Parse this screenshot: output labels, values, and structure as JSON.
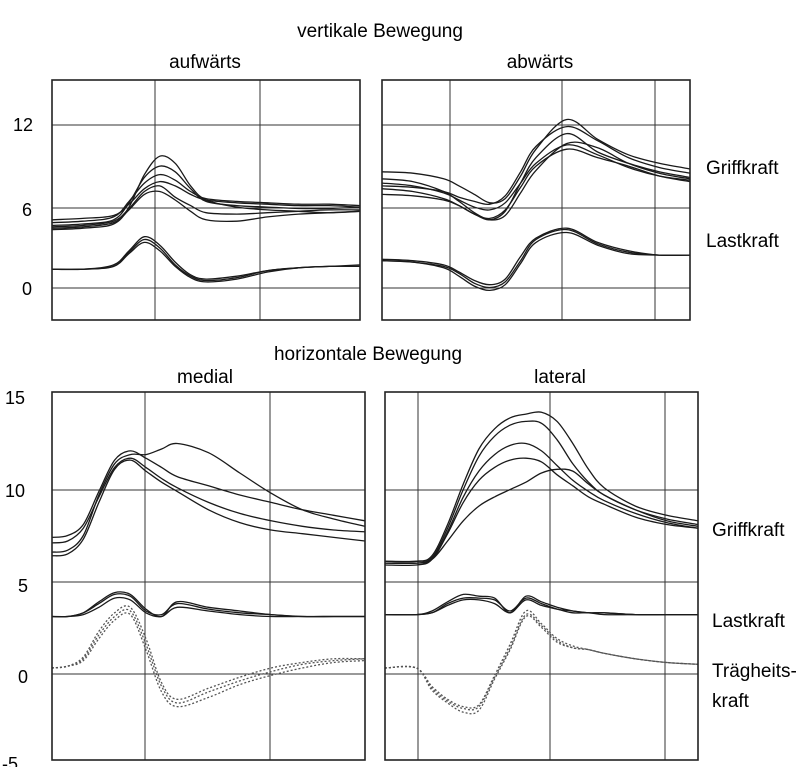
{
  "figure": {
    "title_vertical": "vertikale Bewegung",
    "title_horizontal": "horizontale Bewegung",
    "labels": {
      "griffkraft_top": "Griffkraft",
      "lastkraft_top": "Lastkraft",
      "griffkraft_bottom": "Griffkraft",
      "lastkraft_bottom": "Lastkraft",
      "traegheit_line1": "Trägheits-",
      "traegheit_line2": "kraft"
    }
  },
  "chart_data": [
    {
      "type": "line",
      "title": "aufwärts",
      "xlabel": "",
      "ylabel": "",
      "ylim": [
        -1.5,
        15.5
      ],
      "yticks": [
        "0",
        "6",
        "12"
      ],
      "grid": true,
      "x": [
        0,
        0.1,
        0.2,
        0.25,
        0.3,
        0.35,
        0.4,
        0.45,
        0.5,
        0.6,
        0.7,
        0.8,
        0.9,
        1.0
      ],
      "series": [
        {
          "group": "Griffkraft",
          "values": [
            4.9,
            5.0,
            5.3,
            6.5,
            8.8,
            10.1,
            9.6,
            8.0,
            7.0,
            6.5,
            6.3,
            6.2,
            6.1,
            6.2
          ]
        },
        {
          "group": "Griffkraft",
          "values": [
            5.2,
            5.3,
            5.6,
            6.8,
            8.6,
            9.4,
            9.0,
            7.8,
            6.9,
            6.6,
            6.5,
            6.4,
            6.4,
            6.5
          ]
        },
        {
          "group": "Griffkraft",
          "values": [
            5.4,
            5.5,
            5.8,
            6.9,
            8.2,
            8.8,
            8.4,
            7.6,
            7.1,
            6.9,
            6.8,
            6.7,
            6.7,
            6.6
          ]
        },
        {
          "group": "Griffkraft",
          "values": [
            5.6,
            5.7,
            5.9,
            6.7,
            7.8,
            8.3,
            8.0,
            7.4,
            7.0,
            6.8,
            6.7,
            6.6,
            6.6,
            6.5
          ]
        },
        {
          "group": "Griffkraft",
          "values": [
            5.0,
            5.1,
            5.4,
            6.3,
            7.4,
            7.6,
            7.0,
            6.2,
            5.6,
            5.5,
            5.8,
            6.0,
            6.1,
            6.2
          ]
        },
        {
          "group": "Griffkraft",
          "values": [
            5.1,
            5.2,
            5.5,
            6.4,
            7.6,
            8.0,
            7.2,
            6.6,
            6.1,
            6.0,
            6.1,
            6.2,
            6.3,
            6.3
          ]
        },
        {
          "group": "Lastkraft",
          "values": [
            2.1,
            2.1,
            2.3,
            3.3,
            4.2,
            3.6,
            2.4,
            1.6,
            1.3,
            1.5,
            2.0,
            2.2,
            2.3,
            2.3
          ]
        },
        {
          "group": "Lastkraft",
          "values": [
            2.1,
            2.1,
            2.3,
            3.2,
            4.0,
            3.4,
            2.3,
            1.5,
            1.2,
            1.4,
            1.9,
            2.2,
            2.3,
            2.3
          ]
        },
        {
          "group": "Lastkraft",
          "values": [
            2.1,
            2.1,
            2.4,
            3.4,
            4.4,
            3.8,
            2.6,
            1.7,
            1.4,
            1.6,
            2.0,
            2.2,
            2.3,
            2.4
          ]
        }
      ]
    },
    {
      "type": "line",
      "title": "abwärts",
      "xlabel": "",
      "ylabel": "",
      "ylim": [
        -1.5,
        15.5
      ],
      "grid": true,
      "x": [
        0,
        0.1,
        0.2,
        0.25,
        0.3,
        0.35,
        0.4,
        0.45,
        0.5,
        0.6,
        0.7,
        0.8,
        0.9,
        1.0
      ],
      "series": [
        {
          "group": "Griffkraft",
          "values": [
            9.0,
            8.9,
            8.5,
            8.0,
            7.4,
            6.8,
            7.1,
            8.7,
            10.6,
            12.7,
            11.3,
            10.2,
            9.6,
            9.2
          ]
        },
        {
          "group": "Griffkraft",
          "values": [
            8.0,
            7.9,
            7.6,
            7.2,
            6.9,
            6.7,
            7.3,
            9.0,
            10.8,
            12.2,
            11.2,
            10.0,
            9.3,
            8.9
          ]
        },
        {
          "group": "Griffkraft",
          "values": [
            7.4,
            7.3,
            7.0,
            6.6,
            6.0,
            5.6,
            6.2,
            8.2,
            10.0,
            11.7,
            10.4,
            9.6,
            9.0,
            8.6
          ]
        },
        {
          "group": "Griffkraft",
          "values": [
            8.5,
            8.3,
            7.6,
            6.9,
            6.1,
            5.6,
            5.9,
            7.5,
            9.1,
            11.0,
            10.7,
            9.6,
            8.9,
            8.5
          ]
        },
        {
          "group": "Griffkraft",
          "values": [
            7.8,
            7.6,
            7.1,
            6.6,
            6.0,
            5.7,
            6.3,
            7.9,
            9.4,
            10.6,
            10.0,
            9.4,
            8.7,
            8.3
          ]
        },
        {
          "group": "Griffkraft",
          "values": [
            8.2,
            8.0,
            7.5,
            7.0,
            6.5,
            6.3,
            6.8,
            8.2,
            9.6,
            10.9,
            10.2,
            9.3,
            8.7,
            8.4
          ]
        },
        {
          "group": "Lastkraft",
          "values": [
            2.7,
            2.6,
            2.3,
            1.8,
            1.1,
            0.8,
            1.2,
            2.7,
            4.2,
            4.9,
            3.9,
            3.3,
            3.1,
            3.1
          ]
        },
        {
          "group": "Lastkraft",
          "values": [
            2.8,
            2.7,
            2.4,
            1.9,
            1.3,
            1.0,
            1.4,
            3.0,
            4.3,
            5.0,
            4.0,
            3.4,
            3.1,
            3.1
          ]
        },
        {
          "group": "Lastkraft",
          "values": [
            2.7,
            2.6,
            2.2,
            1.6,
            0.9,
            0.6,
            1.0,
            2.5,
            4.0,
            4.7,
            3.8,
            3.2,
            3.1,
            3.1
          ]
        }
      ]
    },
    {
      "type": "line",
      "title": "medial",
      "xlabel": "",
      "ylabel": "",
      "ylim": [
        -5,
        15
      ],
      "yticks": [
        "-5",
        "0",
        "5",
        "10",
        "15"
      ],
      "grid": true,
      "x": [
        0,
        0.05,
        0.1,
        0.15,
        0.2,
        0.25,
        0.3,
        0.35,
        0.4,
        0.5,
        0.6,
        0.7,
        0.8,
        0.9,
        1.0
      ],
      "series": [
        {
          "group": "Griffkraft",
          "values": [
            7.1,
            7.2,
            7.8,
            9.6,
            11.3,
            11.8,
            11.4,
            10.9,
            10.4,
            9.9,
            9.4,
            9.0,
            8.6,
            8.3,
            8.0
          ]
        },
        {
          "group": "Griffkraft",
          "values": [
            6.3,
            6.4,
            7.2,
            9.4,
            11.1,
            11.6,
            11.6,
            11.9,
            12.2,
            11.7,
            10.6,
            9.5,
            8.6,
            8.1,
            7.7
          ]
        },
        {
          "group": "Griffkraft",
          "values": [
            6.1,
            6.2,
            7.0,
            9.0,
            10.8,
            11.3,
            10.7,
            10.1,
            9.6,
            8.6,
            7.9,
            7.5,
            7.3,
            7.1,
            6.9
          ]
        },
        {
          "group": "Griffkraft",
          "values": [
            6.8,
            6.9,
            7.6,
            9.3,
            10.9,
            11.4,
            10.9,
            10.3,
            9.8,
            9.0,
            8.4,
            8.0,
            7.7,
            7.5,
            7.4
          ]
        },
        {
          "group": "Lastkraft",
          "values": [
            2.8,
            2.8,
            3.0,
            3.5,
            4.0,
            3.9,
            3.1,
            2.9,
            3.5,
            3.2,
            3.0,
            2.9,
            2.8,
            2.8,
            2.8
          ]
        },
        {
          "group": "Lastkraft",
          "values": [
            2.8,
            2.8,
            3.0,
            3.6,
            4.1,
            4.0,
            3.2,
            2.8,
            3.6,
            3.3,
            3.1,
            2.9,
            2.8,
            2.8,
            2.8
          ]
        },
        {
          "group": "Lastkraft",
          "values": [
            2.8,
            2.8,
            2.9,
            3.3,
            3.8,
            3.7,
            3.0,
            2.8,
            3.3,
            3.1,
            2.9,
            2.8,
            2.8,
            2.8,
            2.8
          ]
        },
        {
          "group": "Trägheitskraft",
          "values": [
            0.0,
            0.1,
            0.6,
            2.0,
            3.0,
            3.3,
            1.6,
            -0.8,
            -1.7,
            -1.1,
            -0.5,
            0.0,
            0.3,
            0.5,
            0.5
          ]
        },
        {
          "group": "Trägheitskraft",
          "values": [
            0.0,
            0.1,
            0.4,
            1.6,
            2.6,
            2.9,
            1.0,
            -1.3,
            -2.1,
            -1.6,
            -0.9,
            -0.4,
            0.0,
            0.3,
            0.4
          ]
        },
        {
          "group": "Trägheitskraft",
          "values": [
            0.0,
            0.1,
            0.5,
            1.8,
            2.8,
            3.1,
            1.3,
            -1.0,
            -1.9,
            -1.3,
            -0.7,
            -0.2,
            0.2,
            0.4,
            0.5
          ]
        }
      ]
    },
    {
      "type": "line",
      "title": "lateral",
      "xlabel": "",
      "ylabel": "",
      "ylim": [
        -5,
        15
      ],
      "grid": true,
      "x": [
        0,
        0.1,
        0.15,
        0.2,
        0.25,
        0.3,
        0.35,
        0.4,
        0.45,
        0.5,
        0.55,
        0.6,
        0.65,
        0.7,
        0.8,
        0.9,
        1.0
      ],
      "series": [
        {
          "group": "Griffkraft",
          "values": [
            5.8,
            5.8,
            6.1,
            7.8,
            10.0,
            11.9,
            13.0,
            13.6,
            13.8,
            13.9,
            13.4,
            12.2,
            10.8,
            9.8,
            8.8,
            8.3,
            8.0
          ]
        },
        {
          "group": "Griffkraft",
          "values": [
            5.8,
            5.8,
            6.0,
            7.6,
            9.7,
            11.5,
            12.6,
            13.2,
            13.4,
            13.3,
            12.4,
            11.1,
            10.1,
            9.4,
            8.6,
            8.1,
            7.8
          ]
        },
        {
          "group": "Griffkraft",
          "values": [
            5.6,
            5.6,
            5.9,
            7.4,
            9.3,
            10.7,
            11.6,
            12.1,
            12.2,
            11.8,
            11.0,
            10.2,
            9.6,
            9.1,
            8.4,
            7.9,
            7.6
          ]
        },
        {
          "group": "Griffkraft",
          "values": [
            5.7,
            5.7,
            5.9,
            7.3,
            9.0,
            10.2,
            10.9,
            11.3,
            11.4,
            11.2,
            10.5,
            9.9,
            9.3,
            8.9,
            8.2,
            7.8,
            7.6
          ]
        },
        {
          "group": "Griffkraft",
          "values": [
            5.7,
            5.7,
            5.9,
            6.9,
            8.0,
            8.8,
            9.3,
            9.7,
            10.1,
            10.6,
            10.8,
            10.7,
            10.0,
            9.4,
            8.6,
            8.0,
            7.7
          ]
        },
        {
          "group": "Lastkraft",
          "values": [
            2.9,
            2.9,
            3.0,
            3.5,
            3.8,
            3.8,
            3.7,
            3.1,
            3.8,
            3.5,
            3.2,
            3.1,
            3.0,
            3.0,
            2.9,
            2.9,
            2.9
          ]
        },
        {
          "group": "Lastkraft",
          "values": [
            2.9,
            2.9,
            3.1,
            3.6,
            4.0,
            3.9,
            3.8,
            3.0,
            3.9,
            3.6,
            3.3,
            3.1,
            3.0,
            3.0,
            2.9,
            2.9,
            2.9
          ]
        },
        {
          "group": "Lastkraft",
          "values": [
            2.9,
            2.9,
            3.0,
            3.4,
            3.7,
            3.7,
            3.5,
            3.0,
            3.7,
            3.4,
            3.2,
            3.0,
            3.0,
            2.9,
            2.9,
            2.9,
            2.9
          ]
        },
        {
          "group": "Trägheitskraft",
          "values": [
            0.0,
            0.0,
            -1.2,
            -1.9,
            -2.4,
            -2.3,
            -0.6,
            1.0,
            2.8,
            2.2,
            1.4,
            1.1,
            1.0,
            0.8,
            0.5,
            0.3,
            0.2
          ]
        },
        {
          "group": "Trägheitskraft",
          "values": [
            0.0,
            0.0,
            -1.0,
            -1.7,
            -2.1,
            -2.0,
            -0.4,
            1.3,
            3.1,
            2.4,
            1.6,
            1.2,
            1.0,
            0.8,
            0.5,
            0.3,
            0.2
          ]
        },
        {
          "group": "Trägheitskraft",
          "values": [
            0.0,
            0.0,
            -1.1,
            -1.8,
            -2.2,
            -2.1,
            -0.5,
            1.1,
            2.9,
            2.3,
            1.5,
            1.1,
            1.0,
            0.8,
            0.5,
            0.3,
            0.2
          ]
        }
      ]
    }
  ]
}
